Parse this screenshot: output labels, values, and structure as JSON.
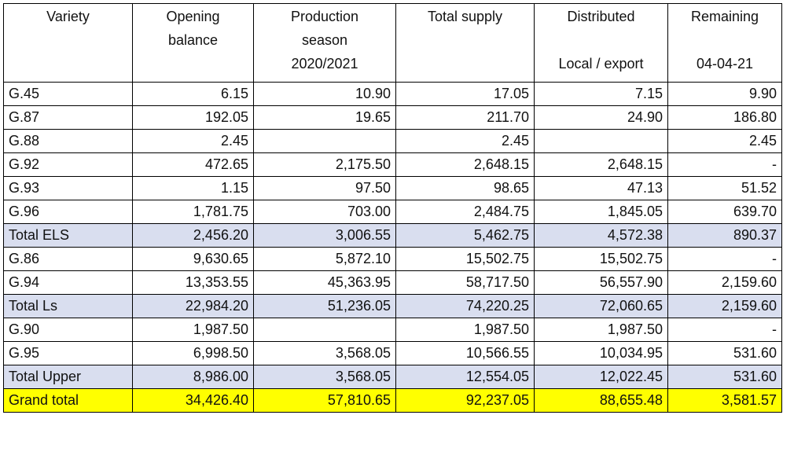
{
  "table": {
    "headers": [
      {
        "lines": [
          "Variety"
        ]
      },
      {
        "lines": [
          "Opening",
          "balance"
        ]
      },
      {
        "lines": [
          "Production",
          "season",
          "2020/2021"
        ]
      },
      {
        "lines": [
          "Total supply"
        ]
      },
      {
        "lines": [
          "Distributed",
          "",
          "Local / export"
        ]
      },
      {
        "lines": [
          "Remaining",
          "",
          "04-04-21"
        ]
      }
    ],
    "rows": [
      {
        "type": "data",
        "cells": [
          "G.45",
          "6.15",
          "10.90",
          "17.05",
          "7.15",
          "9.90"
        ]
      },
      {
        "type": "data",
        "cells": [
          "G.87",
          "192.05",
          "19.65",
          "211.70",
          "24.90",
          "186.80"
        ]
      },
      {
        "type": "data",
        "cells": [
          "G.88",
          "2.45",
          "",
          "2.45",
          "",
          "2.45"
        ]
      },
      {
        "type": "data",
        "cells": [
          "G.92",
          "472.65",
          "2,175.50",
          "2,648.15",
          "2,648.15",
          "-"
        ]
      },
      {
        "type": "data",
        "cells": [
          "G.93",
          "1.15",
          "97.50",
          "98.65",
          "47.13",
          "51.52"
        ]
      },
      {
        "type": "data",
        "cells": [
          "G.96",
          "1,781.75",
          "703.00",
          "2,484.75",
          "1,845.05",
          "639.70"
        ]
      },
      {
        "type": "total",
        "cells": [
          "Total ELS",
          "2,456.20",
          "3,006.55",
          "5,462.75",
          "4,572.38",
          "890.37"
        ]
      },
      {
        "type": "data",
        "cells": [
          "G.86",
          "9,630.65",
          "5,872.10",
          "15,502.75",
          "15,502.75",
          "-"
        ]
      },
      {
        "type": "data",
        "cells": [
          "G.94",
          "13,353.55",
          "45,363.95",
          "58,717.50",
          "56,557.90",
          "2,159.60"
        ]
      },
      {
        "type": "total",
        "cells": [
          "Total Ls",
          "22,984.20",
          "51,236.05",
          "74,220.25",
          "72,060.65",
          "2,159.60"
        ]
      },
      {
        "type": "data",
        "cells": [
          "G.90",
          "1,987.50",
          "",
          "1,987.50",
          "1,987.50",
          "-"
        ]
      },
      {
        "type": "data",
        "cells": [
          "G.95",
          "6,998.50",
          "3,568.05",
          "10,566.55",
          "10,034.95",
          "531.60"
        ]
      },
      {
        "type": "total",
        "cells": [
          "Total Upper",
          "8,986.00",
          "3,568.05",
          "12,554.05",
          "12,022.45",
          "531.60"
        ]
      },
      {
        "type": "grand",
        "cells": [
          "Grand total",
          "34,426.40",
          "57,810.65",
          "92,237.05",
          "88,655.48",
          "3,581.57"
        ]
      }
    ]
  },
  "colors": {
    "total_row_bg": "#d9deef",
    "grand_total_bg": "#ffff00",
    "border": "#000000"
  }
}
